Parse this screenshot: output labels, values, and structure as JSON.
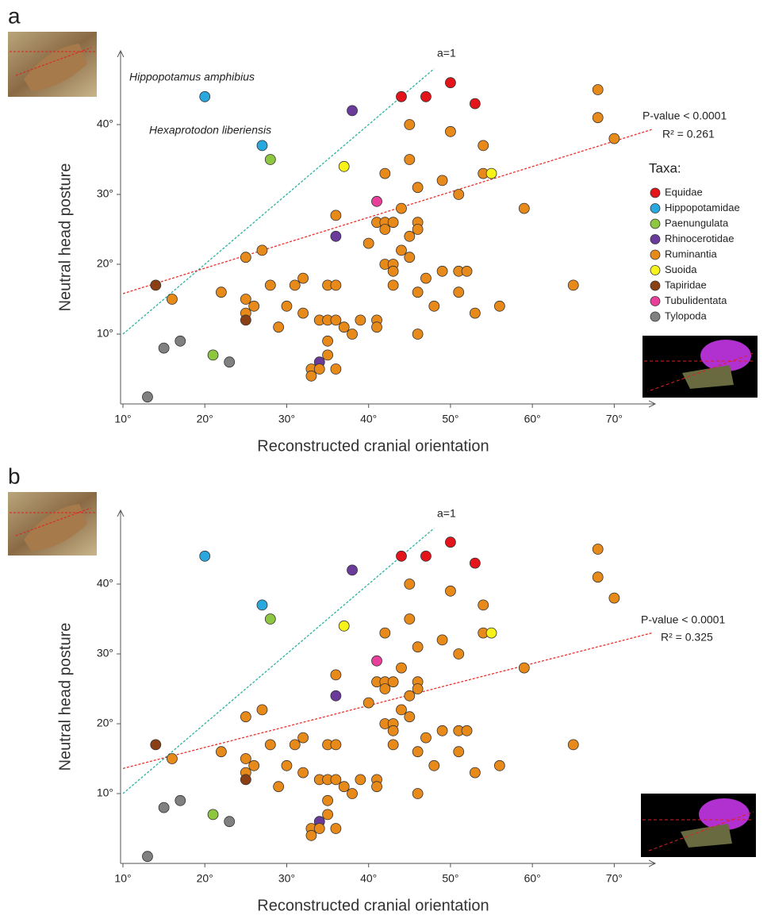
{
  "chart_data": [
    {
      "type": "scatter",
      "panel": "a",
      "x_label": "Reconstructed cranial orientation",
      "y_label": "Neutral head posture",
      "xlim": [
        10,
        75
      ],
      "ylim": [
        0,
        50
      ],
      "xticks": [
        {
          "value": 10,
          "label": "10°"
        },
        {
          "value": 20,
          "label": "20°"
        },
        {
          "value": 30,
          "label": "30°"
        },
        {
          "value": 40,
          "label": "40°"
        },
        {
          "value": 50,
          "label": "50°"
        },
        {
          "value": 60,
          "label": "60°"
        },
        {
          "value": 70,
          "label": "70°"
        }
      ],
      "yticks": [
        {
          "value": 10,
          "label": "10°"
        },
        {
          "value": 20,
          "label": "20°"
        },
        {
          "value": 30,
          "label": "30°"
        },
        {
          "value": 40,
          "label": "40°"
        }
      ],
      "legend": true,
      "legend_title": "Taxa:",
      "series": [
        {
          "name": "Equidae",
          "color": "#e3151b",
          "x": [
            44,
            47,
            50,
            53
          ],
          "values": [
            44,
            44,
            46,
            43
          ]
        },
        {
          "name": "Hippopotamidae",
          "color": "#29a8df",
          "x": [
            20,
            27
          ],
          "values": [
            44,
            37
          ]
        },
        {
          "name": "Paenungulata",
          "color": "#8dc63f",
          "x": [
            28,
            21
          ],
          "values": [
            35,
            7
          ]
        },
        {
          "name": "Rhinocerotidae",
          "color": "#6a3b9a",
          "x": [
            38,
            36,
            34
          ],
          "values": [
            42,
            24,
            6
          ]
        },
        {
          "name": "Ruminantia",
          "color": "#e88a1a",
          "x": [
            68,
            68,
            70,
            45,
            50,
            54,
            45,
            54,
            42,
            49,
            46,
            51,
            59,
            44,
            36,
            41,
            42,
            43,
            46,
            42,
            46,
            45,
            40,
            44,
            45,
            25,
            27,
            42,
            43,
            43,
            49,
            51,
            52,
            43,
            47,
            32,
            31,
            28,
            35,
            36,
            46,
            51,
            65,
            56,
            48,
            16,
            22,
            25,
            26,
            30,
            25,
            32,
            53,
            34,
            35,
            36,
            39,
            41,
            29,
            37,
            41,
            38,
            46,
            35,
            35,
            33,
            34,
            36,
            33
          ],
          "values": [
            45,
            41,
            38,
            40,
            39,
            37,
            35,
            33,
            33,
            32,
            31,
            30,
            28,
            28,
            27,
            26,
            26,
            26,
            26,
            25,
            25,
            24,
            23,
            22,
            21,
            21,
            22,
            20,
            20,
            19,
            19,
            19,
            19,
            17,
            18,
            18,
            17,
            17,
            17,
            17,
            16,
            16,
            17,
            14,
            14,
            15,
            16,
            15,
            14,
            14,
            13,
            13,
            13,
            12,
            12,
            12,
            12,
            12,
            11,
            11,
            11,
            10,
            10,
            9,
            7,
            5,
            5,
            5,
            4
          ]
        },
        {
          "name": "Suoida",
          "color": "#f7f21a",
          "x": [
            37,
            55
          ],
          "values": [
            34,
            33
          ]
        },
        {
          "name": "Tapiridae",
          "color": "#8b3f14",
          "x": [
            14,
            25
          ],
          "values": [
            17,
            12
          ]
        },
        {
          "name": "Tubulidentata",
          "color": "#e8409a",
          "x": [
            41
          ],
          "values": [
            29
          ]
        },
        {
          "name": "Tylopoda",
          "color": "#808080",
          "x": [
            13,
            15,
            17,
            23
          ],
          "values": [
            1,
            8,
            9,
            6
          ]
        }
      ],
      "fit_lines": [
        {
          "name": "a=1",
          "color": "#2ab3a0",
          "x": [
            10,
            48
          ],
          "values": [
            10,
            48
          ]
        },
        {
          "color": "#e8302a",
          "x": [
            10,
            74.6
          ],
          "values": [
            15.8,
            39.3
          ]
        }
      ],
      "annotations": [
        "P-value < 0.0001",
        "R² = 0.261",
        "Hippopotamus amphibius",
        "Hexaprotodon liberiensis"
      ]
    },
    {
      "type": "scatter",
      "panel": "b",
      "x_label": "Reconstructed cranial orientation",
      "y_label": "Neutral head posture",
      "xlim": [
        10,
        75
      ],
      "ylim": [
        0,
        50
      ],
      "xticks": [
        {
          "value": 10,
          "label": "10°"
        },
        {
          "value": 20,
          "label": "20°"
        },
        {
          "value": 30,
          "label": "30°"
        },
        {
          "value": 40,
          "label": "40°"
        },
        {
          "value": 50,
          "label": "50°"
        },
        {
          "value": 60,
          "label": "60°"
        },
        {
          "value": 70,
          "label": "70°"
        }
      ],
      "yticks": [
        {
          "value": 10,
          "label": "10°"
        },
        {
          "value": 20,
          "label": "20°"
        },
        {
          "value": 30,
          "label": "30°"
        },
        {
          "value": 40,
          "label": "40°"
        }
      ],
      "legend": false,
      "series": [
        {
          "color": "#e3151b",
          "x": [
            44,
            47,
            50,
            53
          ],
          "values": [
            44,
            44,
            46,
            43
          ]
        },
        {
          "color": "#29a8df",
          "x": [
            20,
            27
          ],
          "values": [
            44,
            37
          ]
        },
        {
          "color": "#8dc63f",
          "x": [
            28,
            21
          ],
          "values": [
            35,
            7
          ]
        },
        {
          "color": "#6a3b9a",
          "x": [
            38,
            36,
            34
          ],
          "values": [
            42,
            24,
            6
          ]
        },
        {
          "color": "#e88a1a",
          "x": [
            68,
            68,
            70,
            45,
            50,
            54,
            45,
            54,
            42,
            49,
            46,
            51,
            59,
            44,
            36,
            41,
            42,
            43,
            46,
            42,
            46,
            45,
            40,
            44,
            45,
            25,
            27,
            42,
            43,
            43,
            49,
            51,
            52,
            43,
            47,
            32,
            31,
            28,
            35,
            36,
            46,
            51,
            65,
            56,
            48,
            16,
            22,
            25,
            26,
            30,
            25,
            32,
            53,
            34,
            35,
            36,
            39,
            41,
            29,
            37,
            41,
            38,
            46,
            35,
            35,
            33,
            34,
            36,
            33
          ],
          "values": [
            45,
            41,
            38,
            40,
            39,
            37,
            35,
            33,
            33,
            32,
            31,
            30,
            28,
            28,
            27,
            26,
            26,
            26,
            26,
            25,
            25,
            24,
            23,
            22,
            21,
            21,
            22,
            20,
            20,
            19,
            19,
            19,
            19,
            17,
            18,
            18,
            17,
            17,
            17,
            17,
            16,
            16,
            17,
            14,
            14,
            15,
            16,
            15,
            14,
            14,
            13,
            13,
            13,
            12,
            12,
            12,
            12,
            12,
            11,
            11,
            11,
            10,
            10,
            9,
            7,
            5,
            5,
            5,
            4
          ]
        },
        {
          "color": "#f7f21a",
          "x": [
            37,
            55
          ],
          "values": [
            34,
            33
          ]
        },
        {
          "color": "#8b3f14",
          "x": [
            14,
            25
          ],
          "values": [
            17,
            12
          ]
        },
        {
          "color": "#e8409a",
          "x": [
            41
          ],
          "values": [
            29
          ]
        },
        {
          "color": "#808080",
          "x": [
            13,
            15,
            17,
            23
          ],
          "values": [
            1,
            8,
            9,
            6
          ]
        }
      ],
      "fit_lines": [
        {
          "name": "a=1",
          "color": "#2ab3a0",
          "x": [
            10,
            48
          ],
          "values": [
            10,
            48
          ]
        },
        {
          "color": "#e8302a",
          "x": [
            10,
            74.6
          ],
          "values": [
            13.6,
            33
          ]
        }
      ],
      "annotations": [
        "P-value < 0.0001",
        "R² = 0.325"
      ]
    }
  ]
}
